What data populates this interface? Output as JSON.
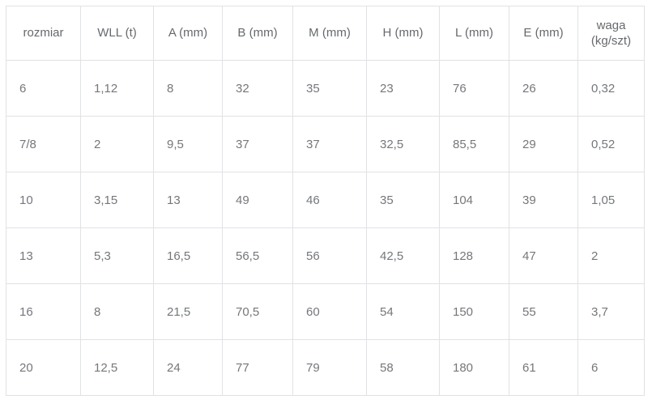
{
  "colors": {
    "background": "#ffffff",
    "border": "#e0e2e6",
    "header_text": "#66696d",
    "cell_text": "#74777b"
  },
  "chart_data": {
    "type": "table",
    "title": "",
    "columns": [
      "rozmiar",
      "WLL (t)",
      "A (mm)",
      "B (mm)",
      "M (mm)",
      "H (mm)",
      "L (mm)",
      "E (mm)",
      "waga (kg/szt)"
    ],
    "rows": [
      [
        "6",
        "1,12",
        "8",
        "32",
        "35",
        "23",
        "76",
        "26",
        "0,32"
      ],
      [
        "7/8",
        "2",
        "9,5",
        "37",
        "37",
        "32,5",
        "85,5",
        "29",
        "0,52"
      ],
      [
        "10",
        "3,15",
        "13",
        "49",
        "46",
        "35",
        "104",
        "39",
        "1,05"
      ],
      [
        "13",
        "5,3",
        "16,5",
        "56,5",
        "56",
        "42,5",
        "128",
        "47",
        "2"
      ],
      [
        "16",
        "8",
        "21,5",
        "70,5",
        "60",
        "54",
        "150",
        "55",
        "3,7"
      ],
      [
        "20",
        "12,5",
        "24",
        "77",
        "79",
        "58",
        "180",
        "61",
        "6"
      ]
    ]
  }
}
